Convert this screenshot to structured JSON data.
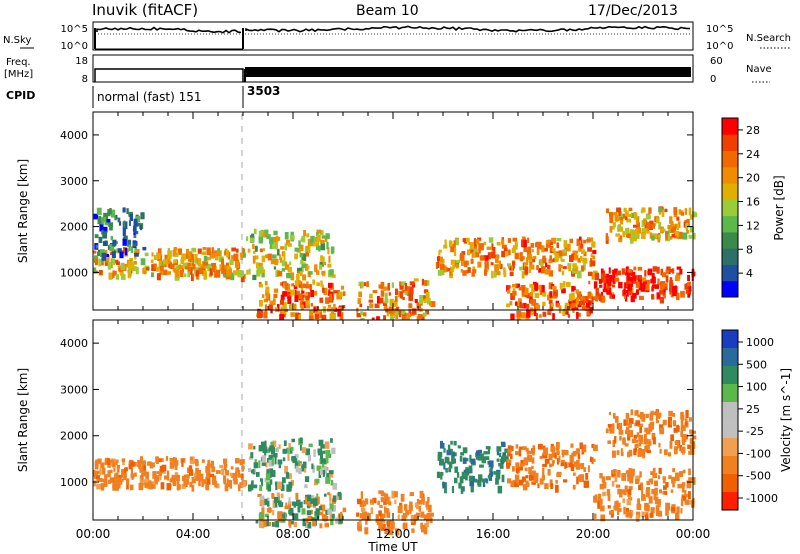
{
  "header": {
    "site": "Inuvik (fitACF)",
    "beam": "Beam 10",
    "date": "17/Dec/2013"
  },
  "top_panels": {
    "nsky_label": "N.Sky",
    "nsearch_label": "N.Search",
    "nsky_ticks": [
      "10^5",
      "10^0"
    ],
    "nsearch_ticks": [
      "10^5",
      "10^0"
    ],
    "freq_label": "Freq.",
    "freq_unit": "[MHz]",
    "freq_ticks": [
      "18",
      "8"
    ],
    "nave_label": "Nave",
    "nave_ticks": [
      "60",
      "0"
    ],
    "cpid_label": "CPID",
    "cpid_modes": [
      {
        "label": "normal (fast) 151",
        "start_hour": 0
      },
      {
        "label": "3503",
        "start_hour": 6
      }
    ]
  },
  "colors": {
    "power": [
      "#0000ff",
      "#1e4fa0",
      "#2f6f6a",
      "#3a8a4a",
      "#5cb84a",
      "#9acc3a",
      "#e0b000",
      "#f08c00",
      "#f06a00",
      "#f04000",
      "#ff0000"
    ],
    "velocity": [
      "#1a3cbf",
      "#2a6a9a",
      "#2f8a60",
      "#5cb84a",
      "#bfbfbf",
      "#c0c0c0",
      "#f0a050",
      "#f08020",
      "#f06000",
      "#ff2000"
    ]
  },
  "chart_data": [
    {
      "type": "heatmap",
      "title": "",
      "xlabel": "Time UT",
      "ylabel": "Slant Range [km]",
      "xlim": [
        0,
        24
      ],
      "ylim": [
        180,
        4500
      ],
      "x_ticks": [
        "00:00",
        "04:00",
        "08:00",
        "12:00",
        "16:00",
        "20:00",
        "00:00"
      ],
      "y_ticks": [
        1000,
        2000,
        3000,
        4000
      ],
      "colorbar": {
        "label": "Power [dB]",
        "ticks": [
          4,
          8,
          12,
          16,
          20,
          24,
          28
        ],
        "range": [
          0,
          30
        ]
      },
      "features": [
        {
          "t_start": 0.0,
          "t_end": 6.0,
          "range_center_km": 1250,
          "value": 20
        },
        {
          "t_start": 0.0,
          "t_end": 2.0,
          "range_center_km": 1900,
          "value": 6
        },
        {
          "t_start": 6.1,
          "t_end": 9.6,
          "range_center_km": 1450,
          "value": 16
        },
        {
          "t_start": 6.5,
          "t_end": 10.0,
          "range_center_km": 450,
          "value": 24
        },
        {
          "t_start": 10.5,
          "t_end": 13.5,
          "range_center_km": 400,
          "value": 22
        },
        {
          "t_start": 13.7,
          "t_end": 20.0,
          "range_center_km": 1400,
          "value": 22
        },
        {
          "t_start": 16.5,
          "t_end": 20.0,
          "range_center_km": 450,
          "value": 24
        },
        {
          "t_start": 20.0,
          "t_end": 24.0,
          "range_center_km": 800,
          "value": 29
        },
        {
          "t_start": 20.5,
          "t_end": 24.0,
          "range_center_km": 2100,
          "value": 20
        }
      ]
    },
    {
      "type": "heatmap",
      "title": "",
      "xlabel": "Time UT",
      "ylabel": "Slant Range [km]",
      "xlim": [
        0,
        24
      ],
      "ylim": [
        180,
        4500
      ],
      "x_ticks": [
        "00:00",
        "04:00",
        "08:00",
        "12:00",
        "16:00",
        "20:00",
        "00:00"
      ],
      "y_ticks": [
        1000,
        2000,
        3000,
        4000
      ],
      "colorbar": {
        "label": "Velocity [m s^-1]",
        "ticks": [
          1000,
          500,
          100,
          25,
          -25,
          -100,
          -500,
          -1000
        ]
      },
      "features": [
        {
          "t_start": 0.0,
          "t_end": 6.0,
          "range_center_km": 1250,
          "value": -300
        },
        {
          "t_start": 6.1,
          "t_end": 9.6,
          "range_center_km": 1450,
          "value": 150
        },
        {
          "t_start": 6.5,
          "t_end": 10.0,
          "range_center_km": 450,
          "value": 0
        },
        {
          "t_start": 10.5,
          "t_end": 13.5,
          "range_center_km": 400,
          "value": -300
        },
        {
          "t_start": 13.7,
          "t_end": 16.5,
          "range_center_km": 1400,
          "value": 400
        },
        {
          "t_start": 16.5,
          "t_end": 20.0,
          "range_center_km": 1400,
          "value": -400
        },
        {
          "t_start": 20.0,
          "t_end": 24.0,
          "range_center_km": 800,
          "value": -300
        },
        {
          "t_start": 20.5,
          "t_end": 24.0,
          "range_center_km": 2100,
          "value": -400
        }
      ]
    }
  ]
}
